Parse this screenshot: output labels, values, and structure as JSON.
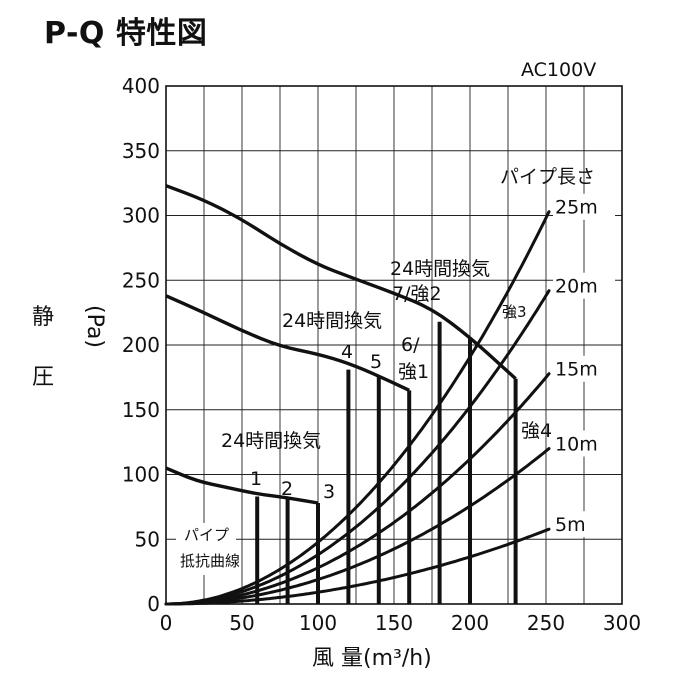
{
  "title": "P-Q 特性図",
  "chart_data": {
    "type": "line",
    "title": "P-Q 特性図",
    "voltage": "AC100V",
    "xlabel": "風 量(m³/h)",
    "ylabel_chars": [
      "静",
      "圧"
    ],
    "ylabel_unit": "(Pa)",
    "xlim": [
      0,
      300
    ],
    "ylim": [
      0,
      400
    ],
    "x_ticks": [
      0,
      50,
      100,
      150,
      200,
      250,
      300
    ],
    "y_ticks": [
      0,
      50,
      100,
      150,
      200,
      250,
      300,
      350,
      400
    ],
    "pq_curves": [
      {
        "name": "high",
        "points": [
          [
            0,
            323
          ],
          [
            25,
            312
          ],
          [
            50,
            297
          ],
          [
            75,
            278
          ],
          [
            100,
            262
          ],
          [
            120,
            253
          ],
          [
            150,
            240
          ],
          [
            175,
            228
          ],
          [
            200,
            206
          ],
          [
            230,
            174
          ]
        ]
      },
      {
        "name": "mid",
        "points": [
          [
            0,
            238
          ],
          [
            25,
            225
          ],
          [
            50,
            211
          ],
          [
            75,
            199
          ],
          [
            100,
            193
          ],
          [
            120,
            186
          ],
          [
            140,
            176
          ],
          [
            160,
            165
          ]
        ]
      },
      {
        "name": "low",
        "points": [
          [
            0,
            105
          ],
          [
            20,
            95
          ],
          [
            40,
            90
          ],
          [
            60,
            85
          ],
          [
            80,
            82
          ],
          [
            100,
            78
          ]
        ]
      }
    ],
    "pipe_curves": [
      {
        "name": "25m",
        "k": 0.00477,
        "label": "25m"
      },
      {
        "name": "20m",
        "k": 0.00381,
        "label": "20m"
      },
      {
        "name": "15m",
        "k": 0.0028,
        "label": "15m"
      },
      {
        "name": "10m",
        "k": 0.00189,
        "label": "10m"
      },
      {
        "name": "5m",
        "k": 0.00091,
        "label": "5m"
      }
    ],
    "pipe_xmax": 252,
    "operating_bars": [
      {
        "label": "1",
        "x": 60,
        "y": 83
      },
      {
        "label": "2",
        "x": 80,
        "y": 82
      },
      {
        "label": "3",
        "x": 100,
        "y": 78
      },
      {
        "label": "4",
        "x": 120,
        "y": 181
      },
      {
        "label": "5",
        "x": 140,
        "y": 176
      },
      {
        "label": "6/強1",
        "x": 160,
        "y": 165
      },
      {
        "label": "7/強2",
        "x": 180,
        "y": 218
      },
      {
        "label": "強3",
        "x": 200,
        "y": 205
      },
      {
        "label": "強4",
        "x": 230,
        "y": 174
      }
    ],
    "annotations": {
      "group1_title": "24時間換気",
      "group2_title": "24時間換気",
      "group3_title": "24時間換気",
      "bar_label_1": "1",
      "bar_label_2": "2",
      "bar_label_3": "3",
      "bar_label_4": "4",
      "bar_label_5": "5",
      "bar_label_6": "6/",
      "bar_label_6b": "強1",
      "bar_label_7": "7/強2",
      "bar_label_k3": "強3",
      "bar_label_k4": "強4",
      "pipe_length_title": "パイプ長さ",
      "pipe_resistance_1": "パイプ",
      "pipe_resistance_2": "抵抗曲線"
    }
  }
}
